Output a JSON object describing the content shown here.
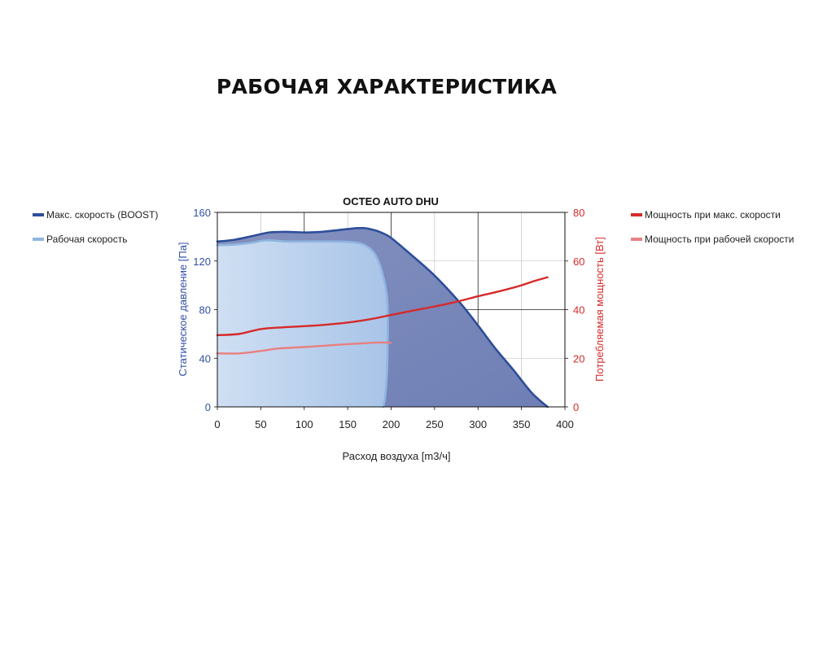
{
  "page": {
    "heading": "РАБОЧАЯ ХАРАКТЕРИСТИКА"
  },
  "chart_data": {
    "type": "area",
    "title": "OCTEO AUTO DHU",
    "xlabel": "Расход воздуха [m3/ч]",
    "ylabel_left": "Статическое давление [Па]",
    "ylabel_right": "Потребляемая мощность [Вт]",
    "xlim": [
      0,
      400
    ],
    "ylim_left": [
      0,
      160
    ],
    "ylim_right": [
      0,
      80
    ],
    "xticks": [
      "0",
      "50",
      "100",
      "150",
      "200",
      "250",
      "300",
      "350",
      "400"
    ],
    "yticks_left": [
      "0",
      "40",
      "80",
      "120",
      "160"
    ],
    "yticks_right": [
      "0",
      "20",
      "40",
      "60",
      "80"
    ],
    "grid": true,
    "legend_left": [
      {
        "label": "Макс. скорость (BOOST)",
        "color": "#2e4e9a"
      },
      {
        "label": "Рабочая скорость",
        "color": "#8fb6e0"
      }
    ],
    "legend_right": [
      {
        "label": "Мощность при макс. скорости",
        "color": "#d62a2a"
      },
      {
        "label": "Мощность при рабочей скорости",
        "color": "#e88080"
      }
    ],
    "series": [
      {
        "name": "Макс. скорость (BOOST)",
        "axis": "left",
        "color": "#2e4e9a",
        "x": [
          0,
          20,
          40,
          60,
          80,
          100,
          120,
          140,
          160,
          170,
          180,
          190,
          200,
          220,
          250,
          280,
          300,
          320,
          340,
          360,
          370,
          380
        ],
        "y": [
          136,
          137.5,
          140.5,
          143.5,
          144,
          143.5,
          144,
          145.5,
          147,
          147,
          145.5,
          143,
          139,
          127,
          108,
          85,
          67,
          48,
          31,
          13,
          6,
          0
        ]
      },
      {
        "name": "Рабочая скорость",
        "axis": "left",
        "color": "#8fb6e0",
        "x": [
          0,
          20,
          40,
          50,
          60,
          80,
          100,
          120,
          140,
          160,
          170,
          180,
          187,
          192,
          195,
          196,
          196,
          195,
          193,
          191
        ],
        "y": [
          133,
          133.5,
          135,
          136.5,
          137,
          136,
          136,
          136,
          136,
          135,
          133,
          127,
          117,
          104,
          92,
          80,
          50,
          25,
          8,
          0
        ]
      },
      {
        "name": "Мощность при макс. скорости",
        "axis": "right",
        "color": "#d62a2a",
        "x": [
          0,
          25,
          50,
          75,
          100,
          125,
          150,
          175,
          200,
          225,
          250,
          275,
          300,
          325,
          350,
          365,
          380
        ],
        "y": [
          29.5,
          30,
          32,
          32.7,
          33.2,
          33.8,
          34.7,
          36,
          37.8,
          39.6,
          41.3,
          43.2,
          45.5,
          47.6,
          50,
          51.8,
          53.3
        ]
      },
      {
        "name": "Мощность при рабочей скорости",
        "axis": "right",
        "color": "#e88080",
        "x": [
          0,
          25,
          50,
          70,
          100,
          125,
          150,
          175,
          190,
          200
        ],
        "y": [
          22,
          22,
          23,
          24,
          24.6,
          25.2,
          25.8,
          26.3,
          26.5,
          26.3
        ]
      }
    ]
  }
}
